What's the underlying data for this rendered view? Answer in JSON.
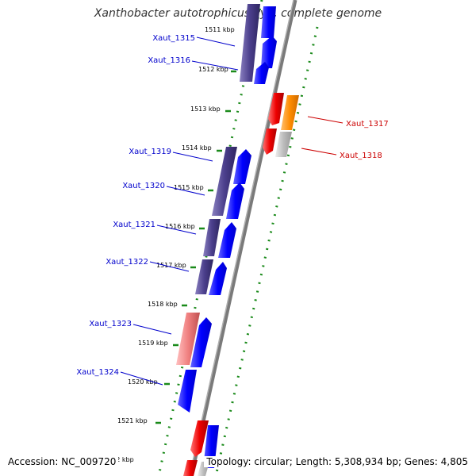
{
  "title": "Xanthobacter autotrophicus Py2, complete genome",
  "footer": {
    "accession": "Accession: NC_009720",
    "topology": "Topology: circular; Length: 5,308,934 bp; Genes: 4,805"
  },
  "kbp_ticks": [
    "1511 kbp",
    "1512 kbp",
    "1513 kbp",
    "1514 kbp",
    "1515 kbp",
    "1516 kbp",
    "1517 kbp",
    "1518 kbp",
    "1519 kbp",
    "1520 kbp",
    "1521 kbp",
    "1522 kbp"
  ],
  "gene_labels": [
    {
      "name": "Xaut_1315",
      "color": "#0000cc"
    },
    {
      "name": "Xaut_1316",
      "color": "#0000cc"
    },
    {
      "name": "Xaut_1317",
      "color": "#cc0000"
    },
    {
      "name": "Xaut_1318",
      "color": "#cc0000"
    },
    {
      "name": "Xaut_1319",
      "color": "#0000cc"
    },
    {
      "name": "Xaut_1320",
      "color": "#0000cc"
    },
    {
      "name": "Xaut_1321",
      "color": "#0000cc"
    },
    {
      "name": "Xaut_1322",
      "color": "#0000cc"
    },
    {
      "name": "Xaut_1323",
      "color": "#0000cc"
    },
    {
      "name": "Xaut_1324",
      "color": "#0000cc"
    }
  ],
  "colors": {
    "backbone": "#888888",
    "tick_dots": "#1a8a1a",
    "gene_blue": "#0000ff",
    "gene_dark": "#4b3f8c",
    "gene_red": "#ee0000",
    "gene_orange": "#ff8c00",
    "gene_gray": "#bbbbbb",
    "gene_pink": "#f08080"
  }
}
